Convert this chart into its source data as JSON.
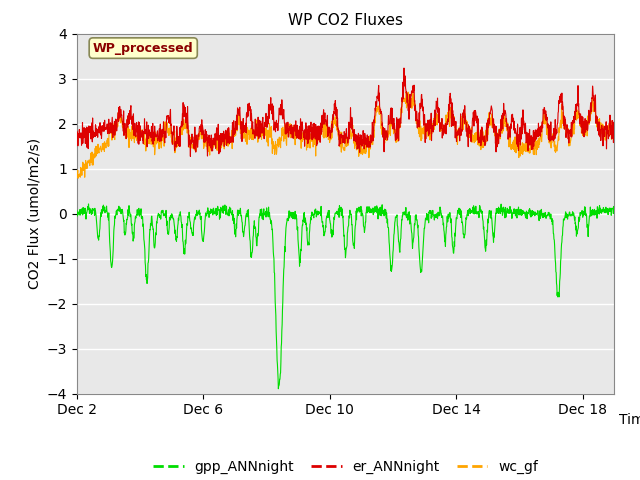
{
  "title": "WP CO2 Fluxes",
  "ylabel": "CO2 Flux (umol/m2/s)",
  "xlabel": "Time",
  "ylim": [
    -4.0,
    4.0
  ],
  "yticks": [
    -4.0,
    -3.0,
    -2.0,
    -1.0,
    0.0,
    1.0,
    2.0,
    3.0,
    4.0
  ],
  "xtick_labels": [
    "Dec 2",
    "Dec 6",
    "Dec 10",
    "Dec 14",
    "Dec 18"
  ],
  "xtick_vals": [
    0,
    4,
    8,
    12,
    16
  ],
  "annotation_text": "WP_processed",
  "annotation_color": "#8B0000",
  "annotation_bg": "#FFFFCC",
  "line_green": "#00DD00",
  "line_red": "#DD0000",
  "line_orange": "#FFA500",
  "background_color": "#E8E8E8",
  "grid_color": "#FFFFFF",
  "n_points": 1700,
  "seed": 7
}
